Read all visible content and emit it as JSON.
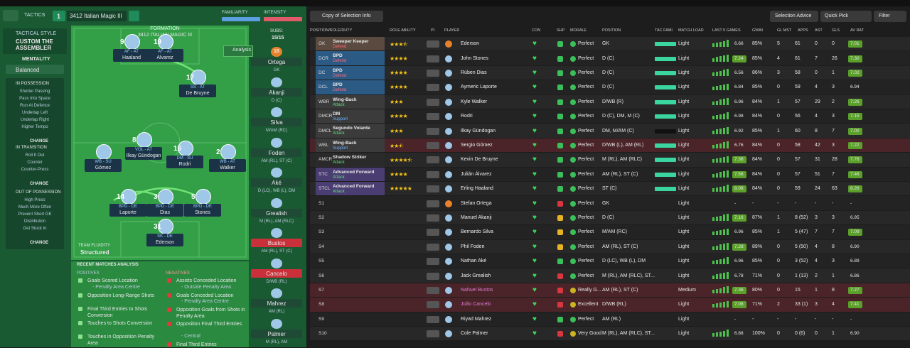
{
  "header": {
    "tactics_label": "TACTICS",
    "slot": "1",
    "tactic_name": "3412 Italian Magic III",
    "familiarity": "FAMILIARITY",
    "intensity": "INTENSITY"
  },
  "left_panel": {
    "tactical_style_label": "TACTICAL STYLE",
    "tactical_style": "CUSTOM THE ASSEMBLER",
    "mentality_label": "MENTALITY",
    "mentality": "Balanced",
    "sections": [
      {
        "title": "IN POSSESSION",
        "items": [
          "Shorter Passing",
          "Pass Into Space",
          "Run At Defence",
          "Underlap Left",
          "Underlap Right",
          "Higher Tempo"
        ],
        "button": "CHANGE"
      },
      {
        "title": "IN TRANSITION",
        "items": [
          "Roll It Out",
          "Counter",
          "Counter-Press"
        ],
        "button": "CHANGE"
      },
      {
        "title": "OUT OF POSSESSION",
        "items": [
          "High Press",
          "Much More Often",
          "Prevent Short GK",
          "Distribution",
          "Get Stuck In"
        ],
        "button": "CHANGE"
      }
    ]
  },
  "pitch": {
    "formation_label": "FORMATION",
    "formation": "3412 ITALIAN MAGIC III",
    "analysis": "Analysis",
    "team_fluidity_label": "TEAM FLUIDITY",
    "team_fluidity": "Structured",
    "players": [
      {
        "number": "9",
        "role": "AF - AT",
        "name": "Haaland"
      },
      {
        "number": "19",
        "role": "AF - AT",
        "name": "Alvarez"
      },
      {
        "number": "17",
        "role": "SS - AT",
        "name": "De Bruyne"
      },
      {
        "number": "8",
        "role": "VOL - AT",
        "name": "Ilkay Gündogan"
      },
      {
        "role": "WB - SU",
        "name": "Gómez"
      },
      {
        "number": "16",
        "role": "DM - SU",
        "name": "Rodri"
      },
      {
        "number": "2",
        "role": "WB - AT",
        "name": "Walker"
      },
      {
        "number": "14",
        "role": "BPD - DE",
        "name": "Laporte"
      },
      {
        "number": "3",
        "role": "BPD - DE",
        "name": "Dias"
      },
      {
        "number": "5",
        "role": "BPD - DE",
        "name": "Stones"
      },
      {
        "number": "31",
        "role": "SK - DE",
        "name": "Ederson"
      }
    ]
  },
  "subs": {
    "label": "SUBS:",
    "count": "15/15",
    "players": [
      {
        "number": "18",
        "name": "Ortega",
        "position": "GK"
      },
      {
        "name": "Akanji",
        "position": "D (C)"
      },
      {
        "name": "Silva",
        "position": "M/AM (RC)"
      },
      {
        "name": "Foden",
        "position": "AM (RL), ST (C)"
      },
      {
        "name": "Aké",
        "position": "D (LC), WB (L), DM"
      },
      {
        "name": "Grealish",
        "position": "M (RL), AM (RLC)"
      },
      {
        "name": "Bustos",
        "position": "AM (RL), ST (C)"
      },
      {
        "name": "Cancelo",
        "position": "D/WB (RL)"
      },
      {
        "name": "Mahrez",
        "position": "AM (RL)"
      },
      {
        "name": "Palmer",
        "position": "M (RL), AM"
      }
    ]
  },
  "analysis": {
    "title": "RECENT MATCHES ANALYSIS",
    "positives_label": "POSITIVES",
    "negatives_label": "NEGATIVES",
    "positives": [
      {
        "text": "Goals Scored Location",
        "detail": "- Penalty Area Centre"
      },
      {
        "text": "Opposition Long-Range Shots"
      },
      {
        "text": "Final Third Entries to Shots Conversion"
      },
      {
        "text": "Touches to Shots Conversion"
      },
      {
        "text": "Touches in Opposition Penalty Area"
      }
    ],
    "negatives": [
      {
        "text": "Assists Conceded Location",
        "detail": "- Outside Penalty Area"
      },
      {
        "text": "Goals Conceded Location",
        "detail": "- Penalty Area Centre"
      },
      {
        "text": "Opposition Goals from Shots in Penalty Area"
      },
      {
        "text": "Opposition Final Third Entries",
        "detail": "- Central"
      },
      {
        "text": "Final Third Entries"
      }
    ]
  },
  "toolbar": {
    "copy": "Copy of Selection Info",
    "selection_advice": "Selection Advice",
    "quick_pick": "Quick Pick",
    "filter": "Filter"
  },
  "table": {
    "columns": [
      "POSITION/ROLE/DUTY",
      "ROLE ABILITY",
      "PI",
      "PLAYER",
      "CON",
      "SHP",
      "MORALE",
      "POSITION",
      "TAC FAMI",
      "MATCH LOAD",
      "LAST 5 GAMES",
      "GWIN",
      "GL MST",
      "APPS",
      "AST",
      "GLS",
      "AV RAT"
    ],
    "rows": [
      {
        "pos": "GK",
        "role": "Sweeper Keeper",
        "duty": "Defend",
        "stars": 3.5,
        "player": "Ederson",
        "morale": "Perfect",
        "position": "GK",
        "load": "Light",
        "last5": "6.66",
        "gwin": "85%",
        "glmst": "5",
        "apps": "61",
        "ast": "0",
        "gls": "0",
        "avrat": "7.01"
      },
      {
        "pos": "DCR",
        "role": "BPD",
        "duty": "Defend",
        "stars": 4,
        "player": "John Stones",
        "morale": "Perfect",
        "position": "D (C)",
        "load": "Light",
        "last5": "7.24",
        "gwin": "85%",
        "glmst": "4",
        "apps": "61",
        "ast": "7",
        "gls": "26",
        "avrat": "7.30"
      },
      {
        "pos": "DC",
        "role": "BPD",
        "duty": "Defend",
        "stars": 4,
        "player": "Rúben Dias",
        "morale": "Perfect",
        "position": "D (C)",
        "load": "Light",
        "last5": "6.56",
        "gwin": "86%",
        "glmst": "3",
        "apps": "58",
        "ast": "0",
        "gls": "1",
        "avrat": "7.02"
      },
      {
        "pos": "DCL",
        "role": "BPD",
        "duty": "Defend",
        "stars": 4,
        "player": "Aymeric Laporte",
        "morale": "Perfect",
        "position": "D (C)",
        "load": "Light",
        "last5": "6.84",
        "gwin": "85%",
        "glmst": "0",
        "apps": "59",
        "ast": "4",
        "gls": "3",
        "avrat": "6.94"
      },
      {
        "pos": "WBR",
        "role": "Wing-Back",
        "duty": "Attack",
        "stars": 3,
        "player": "Kyle Walker",
        "morale": "Perfect",
        "position": "D/WB (R)",
        "load": "Light",
        "last5": "6.96",
        "gwin": "84%",
        "glmst": "1",
        "apps": "57",
        "ast": "29",
        "gls": "2",
        "avrat": "7.26"
      },
      {
        "pos": "DMCR",
        "role": "DM",
        "duty": "Support",
        "stars": 4,
        "player": "Rodri",
        "morale": "Perfect",
        "position": "D (C), DM, M (C)",
        "load": "Light",
        "last5": "6.98",
        "gwin": "84%",
        "glmst": "0",
        "apps": "56",
        "ast": "4",
        "gls": "3",
        "avrat": "7.15"
      },
      {
        "pos": "DMCL",
        "role": "Segundo Volante",
        "duty": "Attack",
        "stars": 3,
        "player": "Ilkay Gündogan",
        "morale": "Perfect",
        "position": "DM, M/AM (C)",
        "load": "Light",
        "last5": "6.92",
        "gwin": "85%",
        "glmst": "1",
        "apps": "60",
        "ast": "8",
        "gls": "7",
        "avrat": "7.00"
      },
      {
        "pos": "WBL",
        "role": "Wing-Back",
        "duty": "Support",
        "stars": 2.5,
        "player": "Sergio Gómez",
        "morale": "Perfect",
        "position": "D/WB (L), AM (RL)",
        "load": "Light",
        "last5": "6.76",
        "gwin": "84%",
        "glmst": "0",
        "apps": "58",
        "ast": "42",
        "gls": "3",
        "avrat": "7.22"
      },
      {
        "pos": "AMCR",
        "role": "Shadow Striker",
        "duty": "Attack",
        "stars": 4.5,
        "player": "Kevin De Bruyne",
        "morale": "Perfect",
        "position": "M (RL), AM (RLC)",
        "load": "Light",
        "last5": "7.36",
        "gwin": "84%",
        "glmst": "0",
        "apps": "57",
        "ast": "31",
        "gls": "28",
        "avrat": "7.76"
      },
      {
        "pos": "STC",
        "role": "Advanced Forward",
        "duty": "Attack",
        "stars": 4,
        "player": "Julián Álvarez",
        "morale": "Perfect",
        "position": "AM (RL), ST (C)",
        "load": "Light",
        "last5": "7.56",
        "gwin": "84%",
        "glmst": "0",
        "apps": "57",
        "ast": "51",
        "gls": "7",
        "avrat": "7.46"
      },
      {
        "pos": "STCL",
        "role": "Advanced Forward",
        "duty": "Attack",
        "stars": 5,
        "player": "Erling Haaland",
        "morale": "Perfect",
        "position": "ST (C)",
        "load": "Light",
        "last5": "8.08",
        "gwin": "84%",
        "glmst": "0",
        "apps": "59",
        "ast": "24",
        "gls": "63",
        "avrat": "8.26"
      },
      {
        "pos": "S1",
        "player": "Stefan Ortega",
        "morale": "Perfect",
        "position": "GK",
        "load": "Light",
        "last5": "-",
        "gwin": "-",
        "glmst": "-",
        "apps": "-",
        "ast": "-",
        "gls": "-",
        "avrat": "-"
      },
      {
        "pos": "S2",
        "player": "Manuel Akanji",
        "morale": "Perfect",
        "position": "D (C)",
        "load": "Light",
        "last5": "7.16",
        "gwin": "87%",
        "glmst": "1",
        "apps": "8 (52)",
        "ast": "3",
        "gls": "3",
        "avrat": "6.95"
      },
      {
        "pos": "S3",
        "player": "Bernardo Silva",
        "morale": "Perfect",
        "position": "M/AM (RC)",
        "load": "Light",
        "last5": "6.96",
        "gwin": "85%",
        "glmst": "1",
        "apps": "5 (47)",
        "ast": "7",
        "gls": "7",
        "avrat": "7.09"
      },
      {
        "pos": "S4",
        "player": "Phil Foden",
        "morale": "Perfect",
        "position": "AM (RL), ST (C)",
        "load": "Light",
        "last5": "7.28",
        "gwin": "89%",
        "glmst": "0",
        "apps": "5 (50)",
        "ast": "4",
        "gls": "8",
        "avrat": "6.90"
      },
      {
        "pos": "S5",
        "player": "Nathan Aké",
        "morale": "Perfect",
        "position": "D (LC), WB (L), DM",
        "load": "Light",
        "last5": "6.96",
        "gwin": "85%",
        "glmst": "0",
        "apps": "3 (52)",
        "ast": "4",
        "gls": "3",
        "avrat": "6.89"
      },
      {
        "pos": "S6",
        "player": "Jack Grealish",
        "morale": "Perfect",
        "position": "M (RL), AM (RLC), ST...",
        "load": "Light",
        "last5": "6.78",
        "gwin": "71%",
        "glmst": "0",
        "apps": "1 (13)",
        "ast": "2",
        "gls": "1",
        "avrat": "6.86"
      },
      {
        "pos": "S7",
        "player": "Nahuel Bustos",
        "morale": "Really G...",
        "position": "AM (RL), ST (C)",
        "load": "Medium",
        "last5": "7.36",
        "gwin": "80%",
        "glmst": "0",
        "apps": "15",
        "ast": "1",
        "gls": "8",
        "avrat": "7.27"
      },
      {
        "pos": "S8",
        "player": "João Cancelo",
        "morale": "Excellent",
        "position": "D/WB (RL)",
        "load": "Light",
        "last5": "7.06",
        "gwin": "71%",
        "glmst": "2",
        "apps": "33 (1)",
        "ast": "3",
        "gls": "4",
        "avrat": "7.41"
      },
      {
        "pos": "S9",
        "player": "Riyad Mahrez",
        "morale": "Perfect",
        "position": "AM (RL)",
        "load": "Light",
        "last5": "-",
        "gwin": "-",
        "glmst": "-",
        "apps": "-",
        "ast": "-",
        "gls": "-",
        "avrat": "-"
      },
      {
        "pos": "S10",
        "player": "Cole Palmer",
        "morale": "Very Good",
        "position": "M (RL), AM (RLC), ST...",
        "load": "Light",
        "last5": "6.88",
        "gwin": "100%",
        "glmst": "0",
        "apps": "0 (6)",
        "ast": "0",
        "gls": "1",
        "avrat": "6.90"
      }
    ]
  }
}
